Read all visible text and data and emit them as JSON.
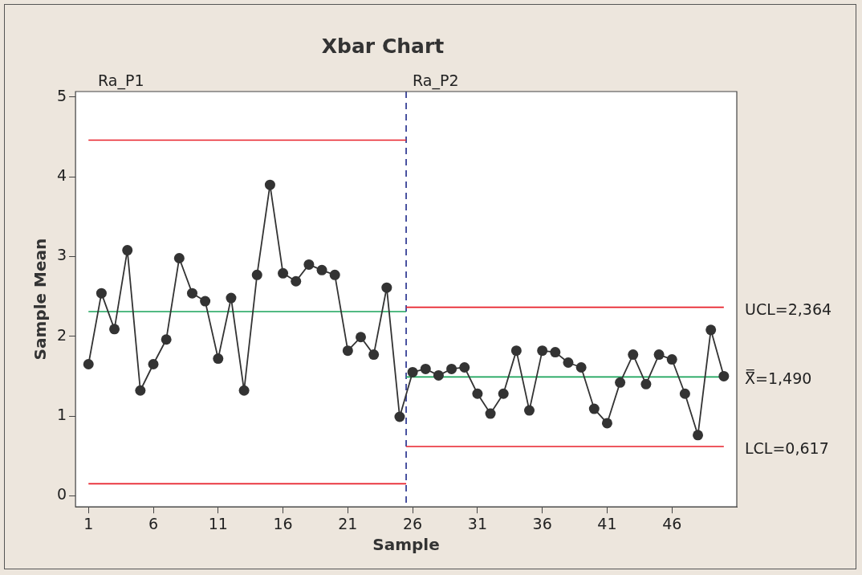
{
  "chart_data": {
    "type": "line",
    "title": "Xbar Chart",
    "xlabel": "Sample",
    "ylabel": "Sample Mean",
    "xlim": [
      0,
      51
    ],
    "ylim": [
      -0.14,
      5.07
    ],
    "xticks": [
      1,
      6,
      11,
      16,
      21,
      26,
      31,
      36,
      41,
      46
    ],
    "yticks": [
      0,
      1,
      2,
      3,
      4,
      5
    ],
    "legend": false,
    "marker": "circle",
    "line_style": "solid",
    "x": [
      1,
      2,
      3,
      4,
      5,
      6,
      7,
      8,
      9,
      10,
      11,
      12,
      13,
      14,
      15,
      16,
      17,
      18,
      19,
      20,
      21,
      22,
      23,
      24,
      25,
      26,
      27,
      28,
      29,
      30,
      31,
      32,
      33,
      34,
      35,
      36,
      37,
      38,
      39,
      40,
      41,
      42,
      43,
      44,
      45,
      46,
      47,
      48,
      49,
      50
    ],
    "series": [
      {
        "color": "#333333",
        "values": [
          1.65,
          2.54,
          2.09,
          3.08,
          1.32,
          1.65,
          1.96,
          2.98,
          2.54,
          2.44,
          1.72,
          2.48,
          1.32,
          2.77,
          3.9,
          2.79,
          2.69,
          2.9,
          2.83,
          2.77,
          1.82,
          1.99,
          1.77,
          2.61,
          0.99,
          1.55,
          1.59,
          1.51,
          1.59,
          1.61,
          1.28,
          1.03,
          1.28,
          1.82,
          1.07,
          1.82,
          1.8,
          1.67,
          1.61,
          1.09,
          0.91,
          1.42,
          1.77,
          1.4,
          1.77,
          1.71,
          1.28,
          0.76,
          2.08,
          1.5
        ]
      },
      {
        "type": "line",
        "marker": "none",
        "color": "#e8202a",
        "x": [
          1,
          25.5
        ],
        "values": [
          4.46,
          4.46
        ]
      },
      {
        "type": "line",
        "marker": "none",
        "color": "#1aa35a",
        "x": [
          1,
          25.5
        ],
        "values": [
          2.31,
          2.31
        ]
      },
      {
        "type": "line",
        "marker": "none",
        "color": "#e8202a",
        "x": [
          1,
          25.5
        ],
        "values": [
          0.15,
          0.15
        ]
      },
      {
        "type": "line",
        "marker": "none",
        "name": "UCL=2,364",
        "color": "#e8202a",
        "x": [
          25.5,
          50
        ],
        "values": [
          2.364,
          2.364
        ]
      },
      {
        "type": "line",
        "marker": "none",
        "name": "X̿=1,490",
        "color": "#1aa35a",
        "x": [
          25.5,
          50
        ],
        "values": [
          1.49,
          1.49
        ]
      },
      {
        "type": "line",
        "marker": "none",
        "name": "LCL=0,617",
        "color": "#e8202a",
        "x": [
          25.5,
          50
        ],
        "values": [
          0.617,
          0.617
        ]
      }
    ],
    "ref_lines": [
      {
        "axis": "x",
        "value": 25.5,
        "color": "#1f2a8a",
        "line_style": "dashed"
      }
    ],
    "annotations": [
      "Ra_P1",
      "Ra_P2"
    ]
  }
}
